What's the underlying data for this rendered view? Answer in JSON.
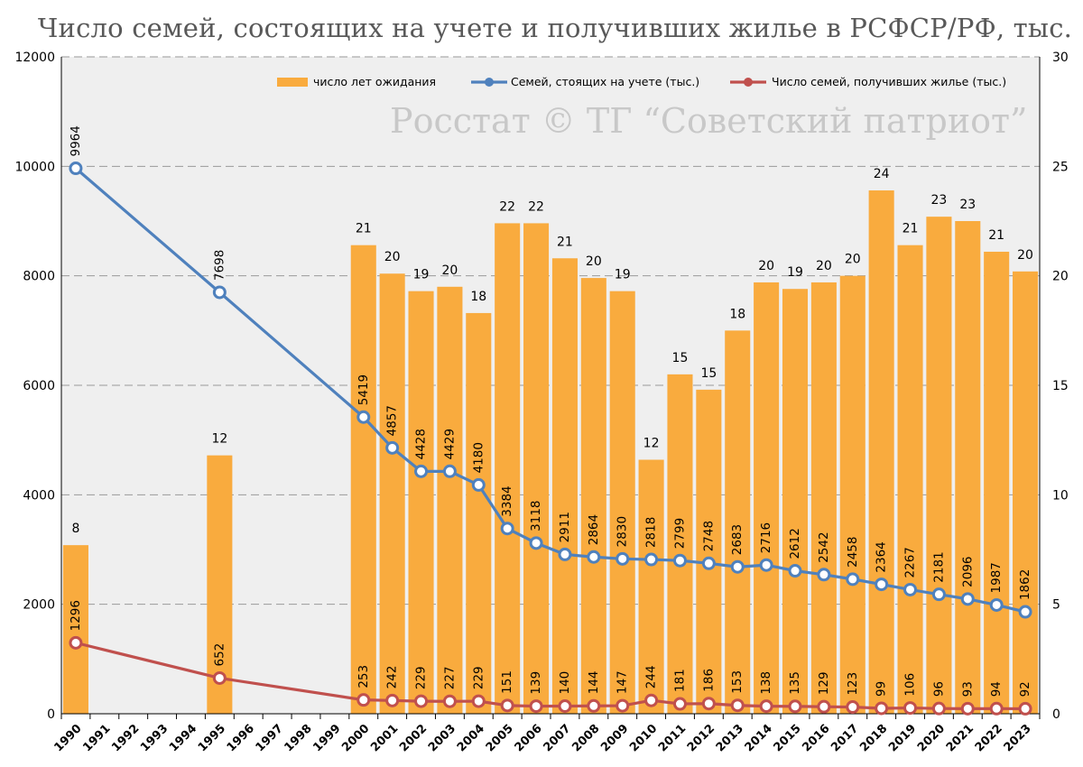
{
  "chart_data": {
    "type": "bar",
    "title": "Число семей, состоящих на учете и получивших жилье в РСФСР/РФ, тыс.",
    "watermark": "Росстат © ТГ “Советский патриот”",
    "categories": [
      "1990",
      "1991",
      "1992",
      "1993",
      "1994",
      "1995",
      "1996",
      "1997",
      "1998",
      "1999",
      "2000",
      "2001",
      "2002",
      "2003",
      "2004",
      "2005",
      "2006",
      "2007",
      "2008",
      "2009",
      "2010",
      "2011",
      "2012",
      "2013",
      "2014",
      "2015",
      "2016",
      "2017",
      "2018",
      "2019",
      "2020",
      "2021",
      "2022",
      "2023"
    ],
    "y_left": {
      "min": 0,
      "max": 12000,
      "ticks": [
        "0",
        "2000",
        "4000",
        "6000",
        "8000",
        "10000",
        "12000"
      ]
    },
    "y_right": {
      "min": 0,
      "max": 30,
      "ticks": [
        "0",
        "5",
        "10",
        "15",
        "20",
        "25",
        "30"
      ]
    },
    "grid": true,
    "legend_position": "top",
    "series": [
      {
        "name": "число лет ожидания",
        "kind": "bar",
        "axis": "right",
        "color": "#f9ab3e",
        "values": [
          7.7,
          null,
          null,
          null,
          null,
          11.8,
          null,
          null,
          null,
          null,
          21.4,
          20.1,
          19.3,
          19.5,
          18.3,
          22.4,
          22.4,
          20.8,
          19.9,
          19.3,
          11.6,
          15.5,
          14.8,
          17.5,
          19.7,
          19.4,
          19.7,
          20.0,
          23.9,
          21.4,
          22.7,
          22.5,
          21.1,
          20.2
        ],
        "labels": [
          "8",
          "",
          "",
          "",
          "",
          "12",
          "",
          "",
          "",
          "",
          "21",
          "20",
          "19",
          "20",
          "18",
          "22",
          "22",
          "21",
          "20",
          "19",
          "12",
          "15",
          "15",
          "18",
          "20",
          "19",
          "20",
          "20",
          "24",
          "21",
          "23",
          "23",
          "21",
          "20"
        ]
      },
      {
        "name": "Семей, стоящих на учете (тыс.)",
        "kind": "line",
        "axis": "left",
        "color": "#4f81bd",
        "values": [
          9964,
          null,
          null,
          null,
          null,
          7698,
          null,
          null,
          null,
          null,
          5419,
          4857,
          4428,
          4429,
          4180,
          3384,
          3118,
          2911,
          2864,
          2830,
          2818,
          2799,
          2748,
          2683,
          2716,
          2612,
          2542,
          2458,
          2364,
          2267,
          2181,
          2096,
          1987,
          1862
        ],
        "labels": [
          "9964",
          "",
          "",
          "",
          "",
          "7698",
          "",
          "",
          "",
          "",
          "5419",
          "4857",
          "4428",
          "4429",
          "4180",
          "3384",
          "3118",
          "2911",
          "2864",
          "2830",
          "2818",
          "2799",
          "2748",
          "2683",
          "2716",
          "2612",
          "2542",
          "2458",
          "2364",
          "2267",
          "2181",
          "2096",
          "1987",
          "1862"
        ]
      },
      {
        "name": "Число семей, получивших жилье (тыс.)",
        "kind": "line",
        "axis": "left",
        "color": "#c0504d",
        "values": [
          1296,
          null,
          null,
          null,
          null,
          652,
          null,
          null,
          null,
          null,
          253,
          242,
          229,
          227,
          229,
          151,
          139,
          140,
          144,
          147,
          244,
          181,
          186,
          153,
          138,
          135,
          129,
          123,
          99,
          106,
          96,
          93,
          94,
          92
        ],
        "labels": [
          "1296",
          "",
          "",
          "",
          "",
          "652",
          "",
          "",
          "",
          "",
          "253",
          "242",
          "229",
          "227",
          "229",
          "151",
          "139",
          "140",
          "144",
          "147",
          "244",
          "181",
          "186",
          "153",
          "138",
          "135",
          "129",
          "123",
          "99",
          "106",
          "96",
          "93",
          "94",
          "92"
        ]
      }
    ]
  }
}
